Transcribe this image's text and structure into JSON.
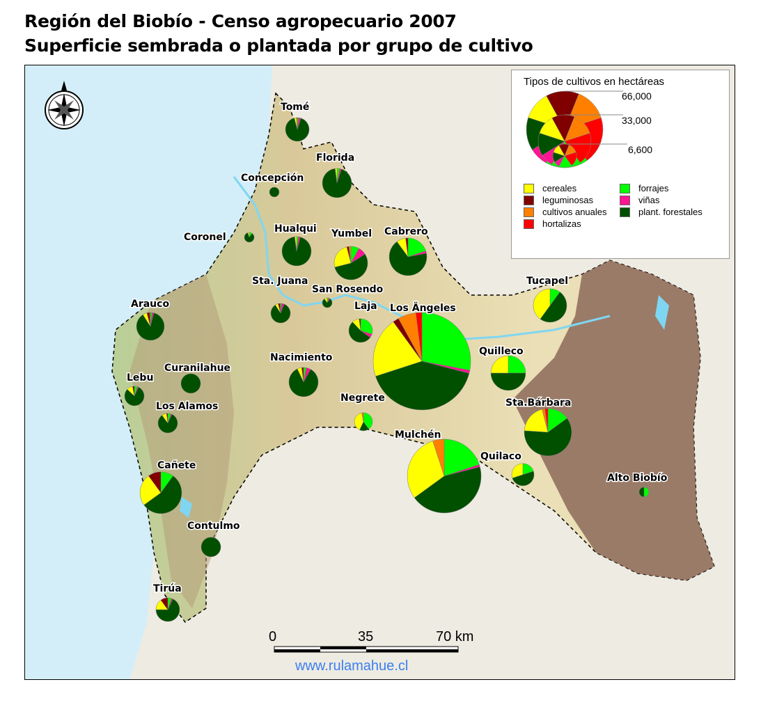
{
  "title": {
    "line1": "Región del Biobío - Censo agropecuario 2007",
    "line2": "Superficie sembrada o plantada por grupo de cultivo"
  },
  "legend": {
    "title": "Tipos de cultivos en hectáreas",
    "size_scale": [
      "66,000",
      "33,000",
      "6,600"
    ],
    "categories": [
      {
        "label": "cereales",
        "color": "#ffff00"
      },
      {
        "label": "leguminosas",
        "color": "#800000"
      },
      {
        "label": "cultivos anuales",
        "color": "#ff8000"
      },
      {
        "label": "hortalizas",
        "color": "#ff0000"
      },
      {
        "label": "forrajes",
        "color": "#00ff00"
      },
      {
        "label": "viñas",
        "color": "#ff1493"
      },
      {
        "label": "plant. forestales",
        "color": "#005000"
      }
    ]
  },
  "scalebar": {
    "labels": [
      "0",
      "35",
      "70 km"
    ]
  },
  "watermark": "www.rulamahue.cl",
  "colors": {
    "sea": "#d3eef8",
    "land_outside": "#eeebe2",
    "region": "#e3d9a8",
    "andes": "#8c6a5a",
    "lakes_rivers": "#7fd6f2"
  },
  "communes_share_order": [
    "forrajes",
    "viñas",
    "plant. forestales",
    "cereales",
    "leguminosas",
    "cultivos anuales",
    "hortalizas"
  ],
  "communes": [
    {
      "name": "Tomé",
      "total_ha": 6300,
      "shares": [
        0.02,
        0.03,
        0.91,
        0.03,
        0,
        0,
        0.01
      ]
    },
    {
      "name": "Florida",
      "total_ha": 9600,
      "shares": [
        0.03,
        0.02,
        0.93,
        0.02,
        0,
        0,
        0
      ]
    },
    {
      "name": "Concepción",
      "total_ha": 1070,
      "shares": [
        0,
        0,
        1,
        0,
        0,
        0,
        0
      ]
    },
    {
      "name": "Coronel",
      "total_ha": 1070,
      "shares": [
        0.1,
        0,
        0.85,
        0.05,
        0,
        0,
        0
      ]
    },
    {
      "name": "Hualqui",
      "total_ha": 9600,
      "shares": [
        0.02,
        0.02,
        0.94,
        0.02,
        0,
        0,
        0
      ]
    },
    {
      "name": "Yumbel",
      "total_ha": 12600,
      "shares": [
        0.08,
        0.08,
        0.55,
        0.25,
        0.02,
        0.02,
        0
      ]
    },
    {
      "name": "Cabrero",
      "total_ha": 15900,
      "shares": [
        0.2,
        0.02,
        0.68,
        0.08,
        0.02,
        0,
        0
      ]
    },
    {
      "name": "Sta. Juana",
      "total_ha": 4300,
      "shares": [
        0.02,
        0.04,
        0.85,
        0.05,
        0.03,
        0,
        0.01
      ]
    },
    {
      "name": "San Rosendo",
      "total_ha": 1070,
      "shares": [
        0.05,
        0.05,
        0.8,
        0.1,
        0,
        0,
        0
      ]
    },
    {
      "name": "Arauco",
      "total_ha": 8700,
      "shares": [
        0.02,
        0.02,
        0.87,
        0.05,
        0.03,
        0,
        0.01
      ]
    },
    {
      "name": "Laja",
      "total_ha": 6300,
      "shares": [
        0.3,
        0.05,
        0.53,
        0.1,
        0.02,
        0,
        0
      ]
    },
    {
      "name": "Los Ängeles",
      "total_ha": 107000,
      "shares": [
        0.28,
        0.01,
        0.41,
        0.2,
        0.02,
        0.06,
        0.02
      ]
    },
    {
      "name": "Tucapel",
      "total_ha": 12600,
      "shares": [
        0.1,
        0,
        0.5,
        0.4,
        0,
        0,
        0
      ]
    },
    {
      "name": "Quilleco",
      "total_ha": 13600,
      "shares": [
        0.25,
        0,
        0.5,
        0.25,
        0,
        0,
        0
      ]
    },
    {
      "name": "Curanilahue",
      "total_ha": 4300,
      "shares": [
        0,
        0,
        1,
        0,
        0,
        0,
        0
      ]
    },
    {
      "name": "Nacimiento",
      "total_ha": 9600,
      "shares": [
        0.03,
        0.05,
        0.85,
        0.05,
        0.02,
        0,
        0
      ]
    },
    {
      "name": "Lebu",
      "total_ha": 4300,
      "shares": [
        0.05,
        0.02,
        0.8,
        0.1,
        0.03,
        0,
        0
      ]
    },
    {
      "name": "Los Alamos",
      "total_ha": 4300,
      "shares": [
        0.05,
        0.02,
        0.83,
        0.08,
        0.02,
        0,
        0
      ]
    },
    {
      "name": "Negrete",
      "total_ha": 3700,
      "shares": [
        0.4,
        0,
        0.17,
        0.4,
        0,
        0.03,
        0
      ]
    },
    {
      "name": "Sta.Bárbara",
      "total_ha": 25200,
      "shares": [
        0.15,
        0,
        0.61,
        0.2,
        0,
        0.02,
        0.02
      ]
    },
    {
      "name": "Mulchén",
      "total_ha": 61300,
      "shares": [
        0.2,
        0.01,
        0.44,
        0.3,
        0,
        0.05,
        0
      ]
    },
    {
      "name": "Quilaco",
      "total_ha": 5600,
      "shares": [
        0.2,
        0,
        0.5,
        0.3,
        0,
        0,
        0
      ]
    },
    {
      "name": "Cañete",
      "total_ha": 19600,
      "shares": [
        0.1,
        0,
        0.55,
        0.25,
        0.1,
        0,
        0
      ]
    },
    {
      "name": "Alto Biobío",
      "total_ha": 1070,
      "shares": [
        0.5,
        0,
        0.5,
        0,
        0,
        0,
        0
      ]
    },
    {
      "name": "Contulmo",
      "total_ha": 4300,
      "shares": [
        0,
        0,
        1,
        0,
        0,
        0,
        0
      ]
    },
    {
      "name": "Tirúa",
      "total_ha": 6300,
      "shares": [
        0.05,
        0.02,
        0.68,
        0.15,
        0.1,
        0,
        0
      ]
    }
  ]
}
